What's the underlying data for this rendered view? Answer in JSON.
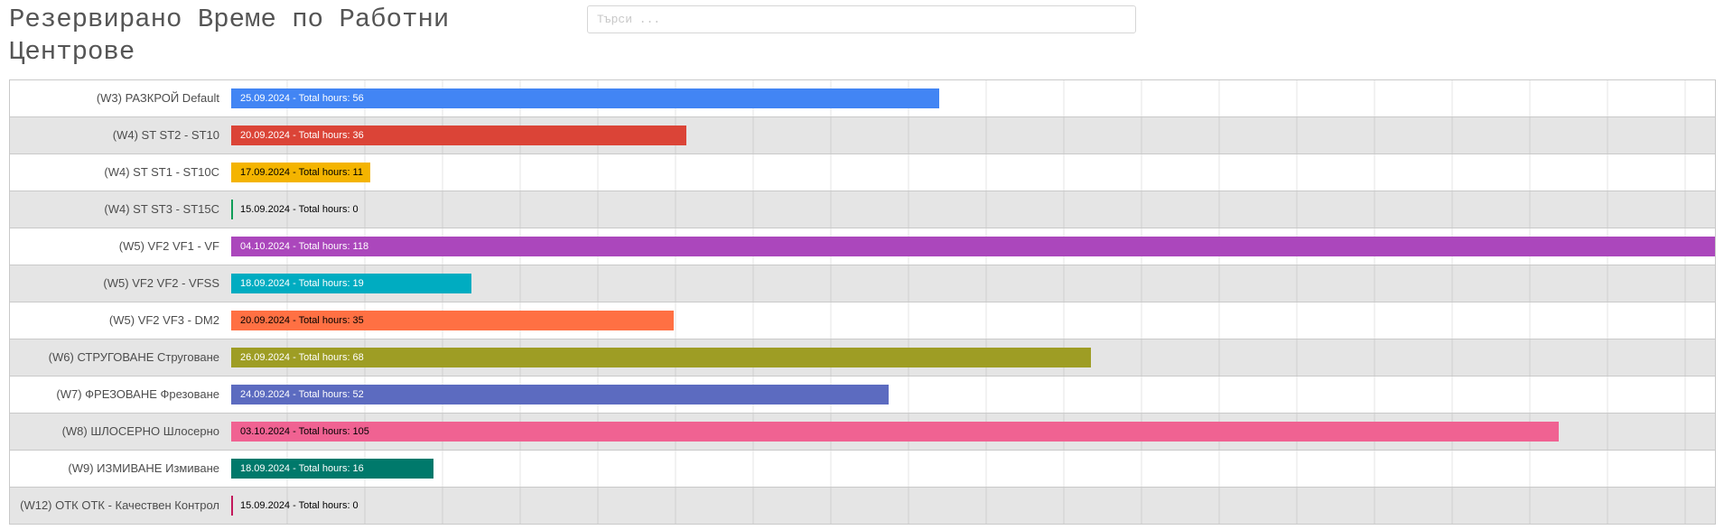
{
  "header": {
    "title": "Резервирано Време по Работни Центрове",
    "search_placeholder": "Търси ..."
  },
  "timeline": {
    "rows": [
      {
        "label": "(W3) РАЗКРОЙ Default",
        "bar_text": "25.09.2024 - Total hours: 56",
        "hours": 56,
        "color": "#4285f4",
        "text_color": "#ffffff"
      },
      {
        "label": "(W4) ST ST2 - ST10",
        "bar_text": "20.09.2024 - Total hours: 36",
        "hours": 36,
        "color": "#db4437",
        "text_color": "#ffffff"
      },
      {
        "label": "(W4) ST ST1 - ST10C",
        "bar_text": "17.09.2024 - Total hours: 11",
        "hours": 11,
        "color": "#f4b400",
        "text_color": "#000000"
      },
      {
        "label": "(W4) ST ST3 - ST15C",
        "bar_text": "15.09.2024 - Total hours: 0",
        "hours": 0,
        "color": "#0f9d58",
        "text_color": "#000000"
      },
      {
        "label": "(W5) VF2 VF1 - VF",
        "bar_text": "04.10.2024 - Total hours: 118",
        "hours": 118,
        "color": "#ab47bc",
        "text_color": "#ffffff"
      },
      {
        "label": "(W5) VF2 VF2 - VFSS",
        "bar_text": "18.09.2024 - Total hours: 19",
        "hours": 19,
        "color": "#00acc1",
        "text_color": "#ffffff"
      },
      {
        "label": "(W5) VF2 VF3 - DM2",
        "bar_text": "20.09.2024 - Total hours: 35",
        "hours": 35,
        "color": "#ff7043",
        "text_color": "#000000"
      },
      {
        "label": "(W6) СТРУГОВАНЕ Струговане",
        "bar_text": "26.09.2024 - Total hours: 68",
        "hours": 68,
        "color": "#9e9d24",
        "text_color": "#ffffff"
      },
      {
        "label": "(W7) ФРЕЗОВАНЕ Фрезоване",
        "bar_text": "24.09.2024 - Total hours: 52",
        "hours": 52,
        "color": "#5c6bc0",
        "text_color": "#ffffff"
      },
      {
        "label": "(W8) ШЛОСЕРНО Шлосерно",
        "bar_text": "03.10.2024 - Total hours: 105",
        "hours": 105,
        "color": "#f06292",
        "text_color": "#000000"
      },
      {
        "label": "(W9) ИЗМИВАНЕ Измиване",
        "bar_text": "18.09.2024 - Total hours: 16",
        "hours": 16,
        "color": "#00796b",
        "text_color": "#ffffff"
      },
      {
        "label": "(W12) ОТК ОТК - Качествен Контрол",
        "bar_text": "15.09.2024 - Total hours: 0",
        "hours": 0,
        "color": "#c2185b",
        "text_color": "#000000"
      }
    ]
  }
}
